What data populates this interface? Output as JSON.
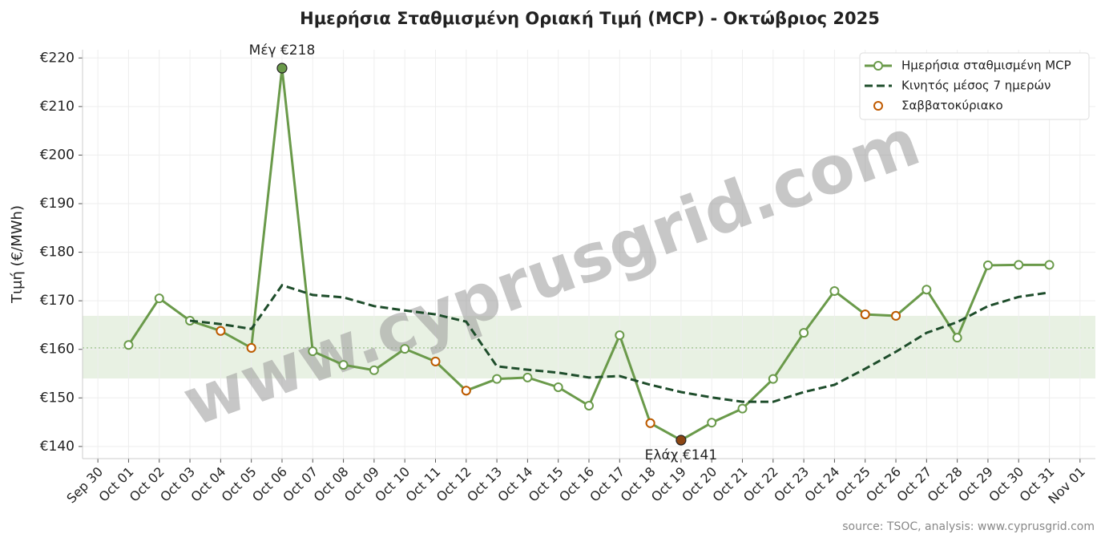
{
  "chart_data": {
    "type": "line",
    "title": "Ημερήσια Σταθμισμένη Οριακή Τιμή (MCP) - Οκτώβριος 2025",
    "y_label": "Τιμή (€/MWh)",
    "watermark": "www.cyprusgrid.com",
    "source": "source: TSOC, analysis: www.cyprusgrid.com",
    "x": [
      1,
      2,
      3,
      4,
      5,
      6,
      7,
      8,
      9,
      10,
      11,
      12,
      13,
      14,
      15,
      16,
      17,
      18,
      19,
      20,
      21,
      22,
      23,
      24,
      25,
      26,
      27,
      28,
      29,
      30,
      31
    ],
    "xlim": [
      -0.5,
      32.5
    ],
    "xticks": [
      {
        "value": 0,
        "label": "Sep 30"
      },
      {
        "value": 1,
        "label": "Oct 01"
      },
      {
        "value": 2,
        "label": "Oct 02"
      },
      {
        "value": 3,
        "label": "Oct 03"
      },
      {
        "value": 4,
        "label": "Oct 04"
      },
      {
        "value": 5,
        "label": "Oct 05"
      },
      {
        "value": 6,
        "label": "Oct 06"
      },
      {
        "value": 7,
        "label": "Oct 07"
      },
      {
        "value": 8,
        "label": "Oct 08"
      },
      {
        "value": 9,
        "label": "Oct 09"
      },
      {
        "value": 10,
        "label": "Oct 10"
      },
      {
        "value": 11,
        "label": "Oct 11"
      },
      {
        "value": 12,
        "label": "Oct 12"
      },
      {
        "value": 13,
        "label": "Oct 13"
      },
      {
        "value": 14,
        "label": "Oct 14"
      },
      {
        "value": 15,
        "label": "Oct 15"
      },
      {
        "value": 16,
        "label": "Oct 16"
      },
      {
        "value": 17,
        "label": "Oct 17"
      },
      {
        "value": 18,
        "label": "Oct 18"
      },
      {
        "value": 19,
        "label": "Oct 19"
      },
      {
        "value": 20,
        "label": "Oct 20"
      },
      {
        "value": 21,
        "label": "Oct 21"
      },
      {
        "value": 22,
        "label": "Oct 22"
      },
      {
        "value": 23,
        "label": "Oct 23"
      },
      {
        "value": 24,
        "label": "Oct 24"
      },
      {
        "value": 25,
        "label": "Oct 25"
      },
      {
        "value": 26,
        "label": "Oct 26"
      },
      {
        "value": 27,
        "label": "Oct 27"
      },
      {
        "value": 28,
        "label": "Oct 28"
      },
      {
        "value": 29,
        "label": "Oct 29"
      },
      {
        "value": 30,
        "label": "Oct 30"
      },
      {
        "value": 31,
        "label": "Oct 31"
      },
      {
        "value": 32,
        "label": "Nov 01"
      }
    ],
    "ylim": [
      137.5,
      221.7
    ],
    "yticks": [
      {
        "value": 140,
        "label": "€140"
      },
      {
        "value": 150,
        "label": "€150"
      },
      {
        "value": 160,
        "label": "€160"
      },
      {
        "value": 170,
        "label": "€170"
      },
      {
        "value": 180,
        "label": "€180"
      },
      {
        "value": 190,
        "label": "€190"
      },
      {
        "value": 200,
        "label": "€200"
      },
      {
        "value": 210,
        "label": "€210"
      },
      {
        "value": 220,
        "label": "€220"
      }
    ],
    "grid": true,
    "legend": "upper right",
    "band": [
      154.0,
      166.9
    ],
    "band_color": "#e8f1e3",
    "mean_line": 160.3,
    "series": [
      {
        "name": "Ημερήσια σταθμισμένη MCP",
        "color": "#6a9a4a",
        "style": "line-markers",
        "values": [
          160.9,
          170.5,
          165.9,
          163.8,
          160.3,
          217.9,
          159.6,
          156.8,
          155.7,
          160.1,
          157.5,
          151.5,
          153.9,
          154.2,
          152.2,
          148.4,
          162.9,
          144.8,
          141.3,
          144.9,
          147.8,
          153.9,
          163.4,
          172.0,
          167.2,
          166.9,
          172.3,
          162.4,
          177.3,
          177.4,
          177.4
        ]
      },
      {
        "name": "Κινητός μέσος 7 ημερών",
        "color": "#1e4d2b",
        "style": "dashed",
        "values": [
          null,
          null,
          165.9,
          165.2,
          164.2,
          173.2,
          171.2,
          170.7,
          168.9,
          168.0,
          167.2,
          165.7,
          156.5,
          155.8,
          155.2,
          154.2,
          154.5,
          152.7,
          151.2,
          150.1,
          149.2,
          149.2,
          151.2,
          152.7,
          156.0,
          159.5,
          163.4,
          165.6,
          168.9,
          170.8,
          171.7
        ]
      },
      {
        "name": "Σαββατοκύριακο",
        "color": "#c05a00",
        "style": "markers",
        "values": [
          null,
          null,
          null,
          163.8,
          160.3,
          null,
          null,
          null,
          null,
          null,
          157.5,
          151.5,
          null,
          null,
          null,
          null,
          null,
          144.8,
          141.3,
          null,
          null,
          null,
          null,
          null,
          167.2,
          166.9,
          null,
          null,
          null,
          null,
          null
        ]
      }
    ],
    "annotations": [
      {
        "text": "Μέγ €218",
        "x": 6,
        "value": 217.9,
        "color": "#6a9a4a",
        "position": "above"
      },
      {
        "text": "Ελάχ €141",
        "x": 19,
        "value": 141.3,
        "color": "#8b4513",
        "position": "below"
      }
    ]
  }
}
